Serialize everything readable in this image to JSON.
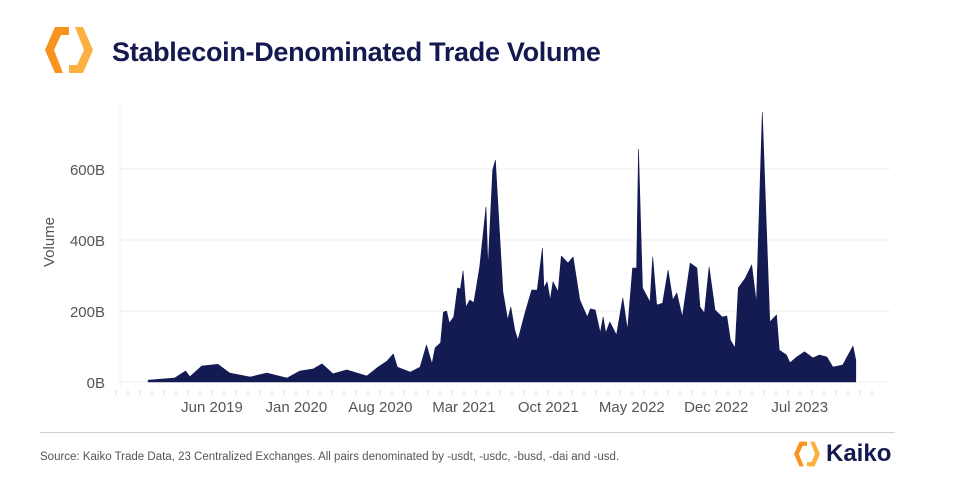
{
  "header": {
    "title": "Stablecoin-Denominated Trade Volume",
    "logo": "kaiko-hexagon-logo"
  },
  "footer": {
    "source": "Source: Kaiko Trade Data, 23 Centralized Exchanges. All pairs denominated by -usdt, -usdc, -busd, -dai and -usd.",
    "brand": "Kaiko"
  },
  "colors": {
    "area": "#141a52",
    "logo_orange": "#f7931e",
    "logo_light": "#fbb040",
    "title": "#141a4f"
  },
  "chart_data": {
    "type": "area",
    "title": "Stablecoin-Denominated Trade Volume",
    "xlabel": "",
    "ylabel": "Volume",
    "ylim": [
      0,
      760
    ],
    "y_unit": "B",
    "yticks": [
      {
        "value": 0,
        "label": "0B"
      },
      {
        "value": 200,
        "label": "200B"
      },
      {
        "value": 400,
        "label": "400B"
      },
      {
        "value": 600,
        "label": "600B"
      }
    ],
    "xticks": [
      {
        "date": "2019-06-01",
        "label": "Jun 2019"
      },
      {
        "date": "2020-01-01",
        "label": "Jan 2020"
      },
      {
        "date": "2020-08-01",
        "label": "Aug 2020"
      },
      {
        "date": "2021-03-01",
        "label": "Mar 2021"
      },
      {
        "date": "2021-10-01",
        "label": "Oct 2021"
      },
      {
        "date": "2022-05-01",
        "label": "May 2022"
      },
      {
        "date": "2022-12-01",
        "label": "Dec 2022"
      },
      {
        "date": "2023-07-01",
        "label": "Jul 2023"
      }
    ],
    "grid": "horizontal",
    "series": [
      {
        "x": [
          "2018-12-21",
          "2019-01-21",
          "2019-02-26",
          "2019-03-26",
          "2019-04-06",
          "2019-05-06",
          "2019-06-16",
          "2019-07-16",
          "2019-09-06",
          "2019-10-18",
          "2019-12-08",
          "2020-01-10",
          "2020-02-13",
          "2020-03-06",
          "2020-04-03",
          "2020-05-08",
          "2020-06-28",
          "2020-07-26",
          "2020-08-18",
          "2020-09-03",
          "2020-09-13",
          "2020-10-16",
          "2020-11-10",
          "2020-11-26",
          "2020-12-10",
          "2020-12-18",
          "2021-01-01",
          "2021-01-08",
          "2021-01-16",
          "2021-01-23",
          "2021-02-03",
          "2021-02-13",
          "2021-02-20",
          "2021-02-27",
          "2021-03-06",
          "2021-03-16",
          "2021-03-26",
          "2021-04-10",
          "2021-04-26",
          "2021-05-01",
          "2021-05-13",
          "2021-05-20",
          "2021-06-08",
          "2021-06-20",
          "2021-06-28",
          "2021-07-08",
          "2021-07-16",
          "2021-08-03",
          "2021-08-20",
          "2021-09-03",
          "2021-09-16",
          "2021-09-20",
          "2021-09-28",
          "2021-10-06",
          "2021-10-13",
          "2021-10-26",
          "2021-11-03",
          "2021-11-20",
          "2021-12-03",
          "2021-12-20",
          "2022-01-08",
          "2022-01-16",
          "2022-01-28",
          "2022-02-10",
          "2022-02-17",
          "2022-02-24",
          "2022-03-06",
          "2022-03-23",
          "2022-04-08",
          "2022-04-20",
          "2022-05-03",
          "2022-05-13",
          "2022-05-18",
          "2022-05-28",
          "2022-06-16",
          "2022-06-23",
          "2022-07-03",
          "2022-07-18",
          "2022-08-01",
          "2022-08-13",
          "2022-08-23",
          "2022-09-06",
          "2022-09-26",
          "2022-10-13",
          "2022-10-21",
          "2022-11-01",
          "2022-11-13",
          "2022-11-28",
          "2022-12-16",
          "2022-12-28",
          "2023-01-06",
          "2023-01-18",
          "2023-01-26",
          "2023-02-13",
          "2023-03-01",
          "2023-03-13",
          "2023-03-28",
          "2023-04-16",
          "2023-05-03",
          "2023-05-10",
          "2023-05-28",
          "2023-06-06",
          "2023-06-23",
          "2023-07-13",
          "2023-08-03",
          "2023-08-20",
          "2023-09-08",
          "2023-09-23",
          "2023-10-18",
          "2023-11-13",
          "2023-11-20"
        ],
        "y": [
          5,
          8,
          11,
          31,
          15,
          45,
          50,
          25,
          14,
          25,
          11,
          31,
          37,
          51,
          23,
          34,
          17,
          42,
          59,
          79,
          42,
          28,
          42,
          104,
          51,
          96,
          110,
          197,
          200,
          166,
          183,
          265,
          262,
          313,
          211,
          231,
          223,
          324,
          493,
          321,
          597,
          625,
          254,
          175,
          211,
          146,
          118,
          194,
          259,
          259,
          377,
          265,
          282,
          231,
          282,
          254,
          355,
          335,
          352,
          231,
          183,
          206,
          203,
          138,
          183,
          138,
          169,
          132,
          237,
          146,
          321,
          321,
          656,
          265,
          225,
          352,
          217,
          222,
          315,
          231,
          251,
          183,
          335,
          321,
          211,
          194,
          324,
          203,
          183,
          186,
          118,
          96,
          265,
          293,
          330,
          222,
          760,
          169,
          189,
          90,
          76,
          54,
          70,
          85,
          68,
          76,
          70,
          42,
          48,
          101,
          62
        ]
      }
    ]
  }
}
